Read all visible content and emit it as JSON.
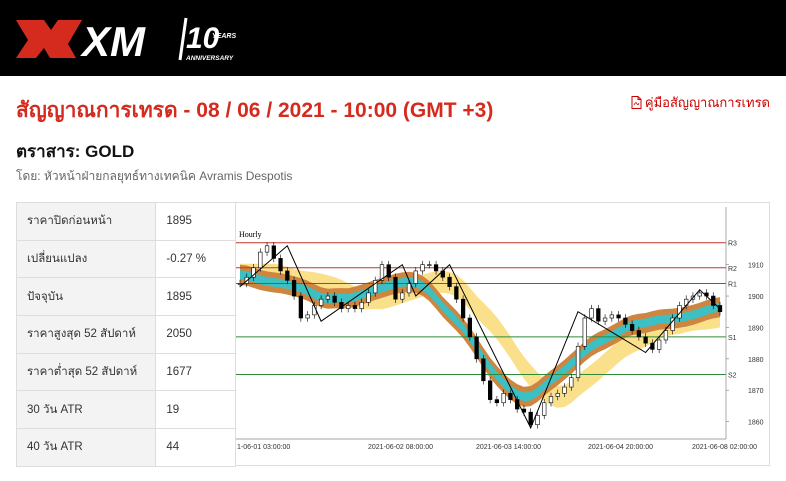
{
  "header": {
    "brand": "XM",
    "anniversary_number": "10",
    "anniversary_years": "YEARS",
    "anniversary_label": "ANNIVERSARY"
  },
  "page": {
    "title": "สัญญาณการเทรด - 08 / 06 / 2021 - 10:00 (GMT +3)",
    "guide_link": "คู่มือสัญญาณการเทรด",
    "instrument": "ตราสาร: GOLD",
    "byline": "โดย: หัวหน้าฝ่ายกลยุทธ์ทางเทคนิค Avramis Despotis"
  },
  "table": [
    {
      "label": "ราคาปิดก่อนหน้า",
      "value": "1895"
    },
    {
      "label": "เปลี่ยนแปลง",
      "value": "-0.27 %"
    },
    {
      "label": "ปัจจุบัน",
      "value": "1895"
    },
    {
      "label": "ราคาสูงสุด 52 สัปดาห์",
      "value": "2050"
    },
    {
      "label": "ราคาต่ำสุด 52 สัปดาห์",
      "value": "1677"
    },
    {
      "label": "30 วัน ATR",
      "value": "19"
    },
    {
      "label": "40 วัน ATR",
      "value": "44"
    }
  ],
  "colors": {
    "brand_red": "#d52b1e",
    "resistance": "#c0392b",
    "support": "#2e8b3a",
    "band_outer": "#cd853f",
    "band_inner": "#3cc0c4",
    "band_light": "#fbe08c"
  },
  "chart_data": {
    "type": "line",
    "timeframe_label": "Hourly",
    "x_tick_labels": [
      "1-06-01 03:00:00",
      "2021-06-02 08:00:00",
      "2021-06-03 14:00:00",
      "2021-06-04 20:00:00",
      "2021-06-08 02:00:00"
    ],
    "y_ticks": [
      1860,
      1870,
      1880,
      1890,
      1900,
      1910
    ],
    "ylim": [
      1857,
      1922
    ],
    "levels": [
      {
        "name": "R3",
        "value": 1917
      },
      {
        "name": "R2",
        "value": 1909
      },
      {
        "name": "R1",
        "value": 1904
      },
      {
        "name": "S1",
        "value": 1887
      },
      {
        "name": "S2",
        "value": 1875
      }
    ],
    "price": [
      1904,
      1906,
      1909,
      1914,
      1916,
      1912,
      1908,
      1905,
      1900,
      1893,
      1894,
      1897,
      1899,
      1900,
      1898,
      1896,
      1897,
      1896,
      1898,
      1901,
      1905,
      1910,
      1906,
      1899,
      1901,
      1904,
      1908,
      1910,
      1910,
      1908,
      1906,
      1903,
      1899,
      1893,
      1887,
      1880,
      1873,
      1867,
      1866,
      1869,
      1867,
      1864,
      1863,
      1859,
      1862,
      1866,
      1868,
      1869,
      1871,
      1874,
      1884,
      1893,
      1896,
      1892,
      1893,
      1894,
      1893,
      1891,
      1889,
      1887,
      1885,
      1883,
      1886,
      1889,
      1893,
      1897,
      1899,
      1900,
      1901,
      1900,
      1897,
      1895
    ],
    "zigzag": [
      [
        0,
        1903
      ],
      [
        7,
        1916
      ],
      [
        12,
        1892
      ],
      [
        24,
        1910
      ],
      [
        26,
        1900
      ],
      [
        31,
        1910
      ],
      [
        43,
        1858
      ],
      [
        50,
        1895
      ],
      [
        60,
        1882
      ],
      [
        68,
        1902
      ],
      [
        71,
        1896
      ]
    ]
  }
}
